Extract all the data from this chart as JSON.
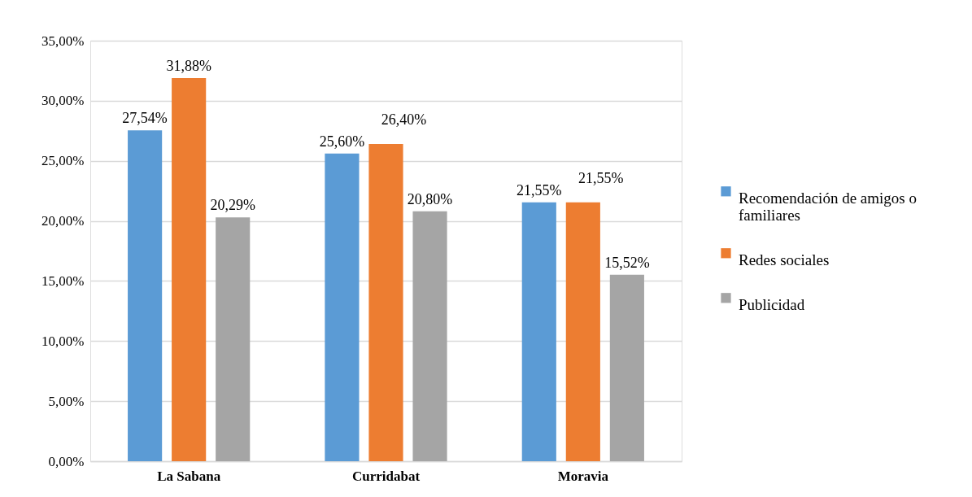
{
  "chart_data": {
    "type": "bar",
    "categories": [
      "La Sabana",
      "Curridabat",
      "Moravia"
    ],
    "series": [
      {
        "name": "Recomendación de amigos o familiares",
        "color": "#5b9bd5",
        "values": [
          27.54,
          25.6,
          21.55
        ],
        "value_labels": [
          "27,54%",
          "25,60%",
          "21,55%"
        ]
      },
      {
        "name": "Redes sociales",
        "color": "#ed7d31",
        "values": [
          31.88,
          26.4,
          21.55
        ],
        "value_labels": [
          "31,88%",
          "26,40%",
          "21,55%"
        ]
      },
      {
        "name": "Publicidad",
        "color": "#a5a5a5",
        "values": [
          20.29,
          20.8,
          15.52
        ],
        "value_labels": [
          "20,29%",
          "20,80%",
          "15,52%"
        ]
      }
    ],
    "ylim": [
      0,
      35
    ],
    "yticks": [
      {
        "value": 0,
        "label": "0,00%"
      },
      {
        "value": 5,
        "label": "5,00%"
      },
      {
        "value": 10,
        "label": "10,00%"
      },
      {
        "value": 15,
        "label": "15,00%"
      },
      {
        "value": 20,
        "label": "20,00%"
      },
      {
        "value": 25,
        "label": "25,00%"
      },
      {
        "value": 30,
        "label": "30,00%"
      },
      {
        "value": 35,
        "label": "35,00%"
      }
    ],
    "grid": "y",
    "legend": "right"
  }
}
